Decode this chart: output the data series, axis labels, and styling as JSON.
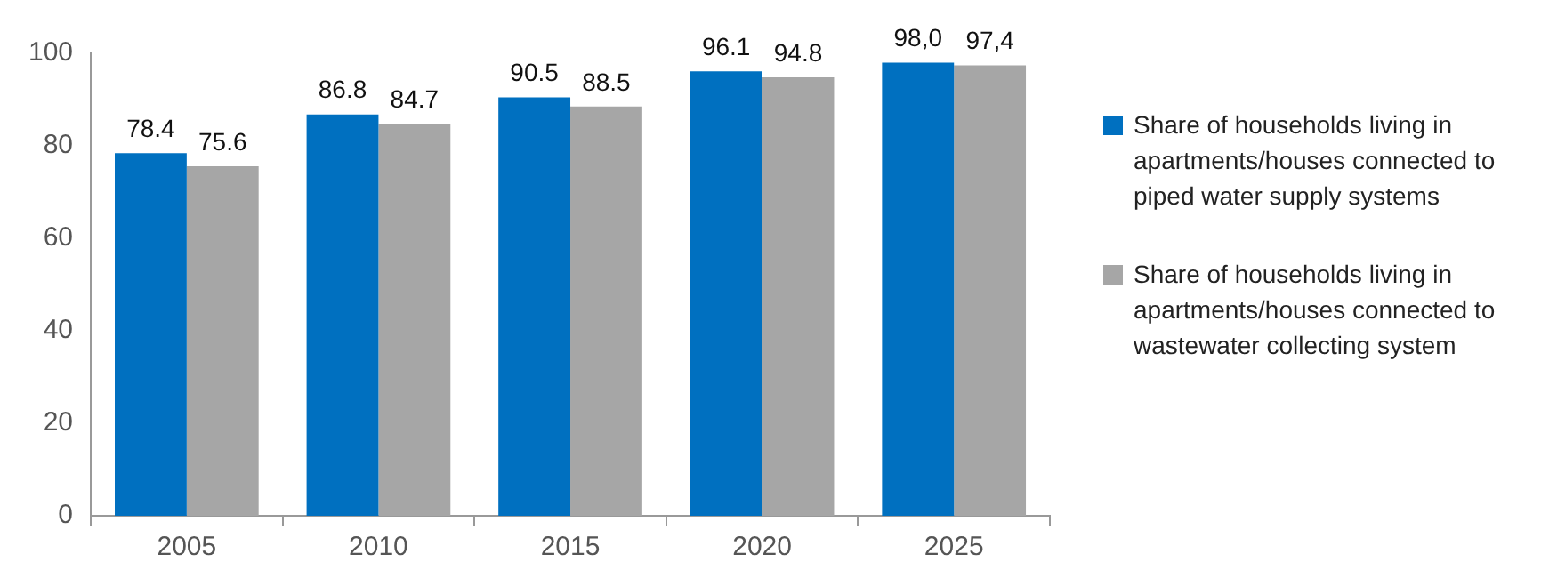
{
  "chart_data": {
    "type": "bar",
    "categories": [
      "2005",
      "2010",
      "2015",
      "2020",
      "2025"
    ],
    "series": [
      {
        "name": "Share of households living in apartments/houses connected to piped water supply systems",
        "color": "#0070c0",
        "values": [
          78.4,
          86.8,
          90.5,
          96.1,
          98.0
        ],
        "value_labels": [
          "78.4",
          "86.8",
          "90.5",
          "96.1",
          "98,0"
        ]
      },
      {
        "name": "Share of households living in apartments/houses connected to wastewater collecting system",
        "color": "#a6a6a6",
        "values": [
          75.6,
          84.7,
          88.5,
          94.8,
          97.4
        ],
        "value_labels": [
          "75.6",
          "84.7",
          "88.5",
          "94.8",
          "97,4"
        ]
      }
    ],
    "ylim": [
      0,
      100
    ],
    "yticks": [
      0,
      20,
      40,
      60,
      80,
      100
    ],
    "grid": false,
    "legend": "right"
  }
}
